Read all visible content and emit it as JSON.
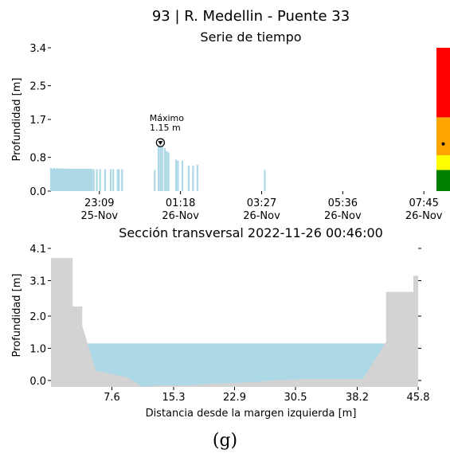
{
  "figure": {
    "suptitle": "93 | R. Medellin - Puente 33",
    "caption": "(g)"
  },
  "colors": {
    "water": "#add8e6",
    "ground": "#d3d3d3",
    "alert_red": "#ff0000",
    "alert_orange": "#ffa500",
    "alert_yellow": "#ffff00",
    "alert_green": "#008000"
  },
  "chart_data": [
    {
      "type": "bar",
      "title": "Serie de tiempo",
      "xlabel": "",
      "ylabel": "Profundidad [m]",
      "ylim": [
        0,
        3.4
      ],
      "yticks": [
        "0.0",
        "0.8",
        "1.7",
        "2.5",
        "3.4"
      ],
      "ytick_values": [
        0.0,
        0.8,
        1.7,
        2.5,
        3.4
      ],
      "xlim": [
        "25-Nov 21:52",
        "26-Nov 08:05"
      ],
      "xticks": [
        {
          "time": "25-Nov 23:09",
          "line1": "23:09",
          "line2": "25-Nov"
        },
        {
          "time": "26-Nov 01:18",
          "line1": "01:18",
          "line2": "26-Nov"
        },
        {
          "time": "26-Nov 03:27",
          "line1": "03:27",
          "line2": "26-Nov"
        },
        {
          "time": "26-Nov 05:36",
          "line1": "05:36",
          "line2": "26-Nov"
        },
        {
          "time": "26-Nov 07:45",
          "line1": "07:45",
          "line2": "26-Nov"
        }
      ],
      "series": [
        {
          "points": [
            [
              "25-Nov 21:52",
              0.55
            ],
            [
              "25-Nov 21:57",
              0.55
            ],
            [
              "25-Nov 22:02",
              0.54
            ],
            [
              "25-Nov 22:07",
              0.54
            ],
            [
              "25-Nov 22:12",
              0.54
            ],
            [
              "25-Nov 22:17",
              0.53
            ],
            [
              "25-Nov 22:22",
              0.53
            ],
            [
              "25-Nov 22:27",
              0.53
            ],
            [
              "25-Nov 22:32",
              0.53
            ],
            [
              "25-Nov 22:37",
              0.53
            ],
            [
              "25-Nov 22:42",
              0.52
            ],
            [
              "25-Nov 22:47",
              0.52
            ],
            [
              "25-Nov 22:52",
              0.52
            ],
            [
              "25-Nov 22:57",
              0.52
            ],
            [
              "25-Nov 23:00",
              0.52
            ],
            [
              "25-Nov 23:05",
              0.52
            ],
            [
              "25-Nov 23:10",
              0.52
            ],
            [
              "25-Nov 23:18",
              0.52
            ],
            [
              "25-Nov 23:27",
              0.52
            ],
            [
              "25-Nov 23:31",
              0.52
            ],
            [
              "25-Nov 23:38",
              0.52
            ],
            [
              "25-Nov 23:40",
              0.52
            ],
            [
              "25-Nov 23:45",
              0.52
            ],
            [
              "26-Nov 00:37",
              0.5
            ],
            [
              "26-Nov 00:43",
              1.05
            ],
            [
              "26-Nov 00:46",
              1.15
            ],
            [
              "26-Nov 00:49",
              1.1
            ],
            [
              "26-Nov 00:53",
              1.02
            ],
            [
              "26-Nov 00:56",
              0.95
            ],
            [
              "26-Nov 00:59",
              0.92
            ],
            [
              "26-Nov 01:11",
              0.75
            ],
            [
              "26-Nov 01:14",
              0.72
            ],
            [
              "26-Nov 01:21",
              0.72
            ],
            [
              "26-Nov 01:31",
              0.6
            ],
            [
              "26-Nov 01:38",
              0.6
            ],
            [
              "26-Nov 01:45",
              0.62
            ],
            [
              "26-Nov 03:32",
              0.5
            ]
          ]
        }
      ],
      "annotation": {
        "label": "Máximo",
        "value_label": "1.15 m",
        "time": "26-Nov 00:46",
        "value": 1.15
      },
      "alert_scale": {
        "current_value": 1.12,
        "levels": [
          {
            "from": 0.0,
            "to": 0.5,
            "color": "#008000"
          },
          {
            "from": 0.5,
            "to": 0.85,
            "color": "#ffff00"
          },
          {
            "from": 0.85,
            "to": 1.75,
            "color": "#ffa500"
          },
          {
            "from": 1.75,
            "to": 3.4,
            "color": "#ff0000"
          }
        ]
      }
    },
    {
      "type": "area",
      "title": "Sección transversal 2022-11-26 00:46:00",
      "xlabel": "Distancia desde la margen izquierda [m]",
      "ylabel": "Profundidad [m]",
      "xlim": [
        0,
        45.8
      ],
      "ylim": [
        -0.2,
        4.1
      ],
      "xticks": [
        "7.6",
        "15.3",
        "22.9",
        "30.5",
        "38.2",
        "45.8"
      ],
      "xtick_values": [
        7.6,
        15.3,
        22.9,
        30.5,
        38.2,
        45.8
      ],
      "yticks": [
        "0.0",
        "1.0",
        "2.0",
        "3.1",
        "4.1"
      ],
      "ytick_values": [
        0.0,
        1.0,
        2.0,
        3.1,
        4.1
      ],
      "water_level": 1.15,
      "ground_profile": [
        [
          0,
          3.8
        ],
        [
          2.7,
          3.8
        ],
        [
          2.7,
          2.3
        ],
        [
          3.9,
          2.3
        ],
        [
          3.9,
          1.7
        ],
        [
          5.6,
          0.3
        ],
        [
          9.5,
          0.1
        ],
        [
          11.4,
          -0.2
        ],
        [
          13.4,
          -0.15
        ],
        [
          17.1,
          -0.15
        ],
        [
          20.0,
          -0.1
        ],
        [
          25.6,
          -0.05
        ],
        [
          27.5,
          0.0
        ],
        [
          32.1,
          0.05
        ],
        [
          34.0,
          0.05
        ],
        [
          38.9,
          0.05
        ],
        [
          41.8,
          1.2
        ],
        [
          41.8,
          2.75
        ],
        [
          45.2,
          2.75
        ],
        [
          45.2,
          3.25
        ],
        [
          45.8,
          3.25
        ],
        [
          45.8,
          3.4
        ]
      ]
    }
  ]
}
